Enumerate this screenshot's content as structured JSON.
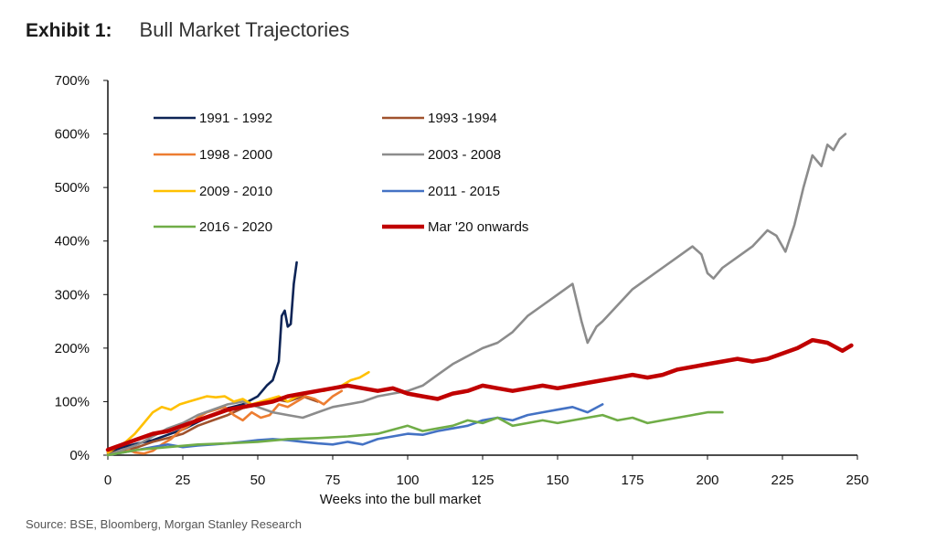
{
  "header": {
    "exhibit": "Exhibit 1:",
    "title": "Bull Market Trajectories"
  },
  "source": "Source: BSE, Bloomberg, Morgan Stanley Research",
  "chart_data": {
    "type": "line",
    "title": "Bull Market Trajectories",
    "xlabel": "Weeks into the bull market",
    "ylabel": "",
    "xlim": [
      0,
      250
    ],
    "ylim": [
      0,
      700
    ],
    "xticks": [
      0,
      25,
      50,
      75,
      100,
      125,
      150,
      175,
      200,
      225,
      250
    ],
    "yticks": [
      0,
      100,
      200,
      300,
      400,
      500,
      600,
      700
    ],
    "ytick_labels": [
      "0%",
      "100%",
      "200%",
      "300%",
      "400%",
      "500%",
      "600%",
      "700%"
    ],
    "grid": false,
    "legend_position": "top-left",
    "series": [
      {
        "name": "1991 - 1992",
        "color": "#0d2456",
        "x": [
          0,
          5,
          10,
          15,
          20,
          25,
          30,
          35,
          40,
          45,
          50,
          53,
          55,
          57,
          58,
          59,
          60,
          61,
          62,
          63
        ],
        "y": [
          5,
          15,
          22,
          28,
          38,
          48,
          62,
          75,
          88,
          95,
          110,
          130,
          140,
          175,
          260,
          270,
          240,
          245,
          320,
          360
        ]
      },
      {
        "name": "1993 -1994",
        "color": "#a0522d",
        "x": [
          0,
          5,
          10,
          15,
          20,
          25,
          30,
          35,
          40,
          45,
          50,
          55,
          60,
          65,
          70
        ],
        "y": [
          3,
          8,
          15,
          25,
          32,
          40,
          55,
          65,
          75,
          88,
          95,
          105,
          100,
          110,
          100
        ]
      },
      {
        "name": "1998 - 2000",
        "color": "#ed7d31",
        "x": [
          0,
          3,
          6,
          9,
          12,
          15,
          18,
          21,
          24,
          27,
          30,
          33,
          36,
          39,
          42,
          45,
          48,
          51,
          54,
          57,
          60,
          63,
          66,
          69,
          72,
          75,
          78
        ],
        "y": [
          0,
          5,
          12,
          5,
          3,
          8,
          20,
          30,
          45,
          55,
          70,
          80,
          85,
          90,
          75,
          65,
          80,
          70,
          75,
          95,
          90,
          100,
          110,
          105,
          95,
          110,
          120
        ]
      },
      {
        "name": "2003 - 2008",
        "color": "#8c8c8c",
        "x": [
          0,
          5,
          10,
          15,
          20,
          25,
          30,
          35,
          40,
          45,
          50,
          55,
          60,
          65,
          70,
          75,
          80,
          85,
          90,
          95,
          100,
          105,
          110,
          115,
          120,
          125,
          130,
          135,
          140,
          145,
          150,
          155,
          158,
          160,
          163,
          165,
          170,
          175,
          180,
          185,
          190,
          195,
          198,
          200,
          202,
          205,
          210,
          215,
          220,
          223,
          226,
          229,
          232,
          235,
          238,
          240,
          242,
          244,
          246
        ],
        "y": [
          0,
          10,
          20,
          35,
          50,
          60,
          75,
          85,
          95,
          100,
          90,
          80,
          75,
          70,
          80,
          90,
          95,
          100,
          110,
          115,
          120,
          130,
          150,
          170,
          185,
          200,
          210,
          230,
          260,
          280,
          300,
          320,
          250,
          210,
          240,
          250,
          280,
          310,
          330,
          350,
          370,
          390,
          375,
          340,
          330,
          350,
          370,
          390,
          420,
          410,
          380,
          430,
          500,
          560,
          540,
          580,
          570,
          590,
          600
        ]
      },
      {
        "name": "2009 - 2010",
        "color": "#ffc000",
        "x": [
          0,
          3,
          6,
          9,
          12,
          15,
          18,
          21,
          24,
          27,
          30,
          33,
          36,
          39,
          42,
          45,
          48,
          51,
          54,
          57,
          60,
          63,
          66,
          69,
          72,
          75,
          78,
          81,
          84,
          87
        ],
        "y": [
          5,
          15,
          25,
          40,
          60,
          80,
          90,
          85,
          95,
          100,
          105,
          110,
          108,
          110,
          100,
          105,
          95,
          100,
          105,
          110,
          100,
          110,
          115,
          120,
          120,
          125,
          130,
          140,
          145,
          155
        ]
      },
      {
        "name": "2011 - 2015",
        "color": "#4472c4",
        "x": [
          0,
          5,
          10,
          15,
          20,
          25,
          30,
          35,
          40,
          45,
          50,
          55,
          60,
          65,
          70,
          75,
          80,
          85,
          90,
          95,
          100,
          105,
          110,
          115,
          120,
          125,
          130,
          135,
          140,
          145,
          150,
          155,
          160,
          165
        ],
        "y": [
          0,
          5,
          10,
          15,
          20,
          15,
          18,
          20,
          22,
          25,
          28,
          30,
          28,
          25,
          22,
          20,
          25,
          20,
          30,
          35,
          40,
          38,
          45,
          50,
          55,
          65,
          70,
          65,
          75,
          80,
          85,
          90,
          80,
          95
        ]
      },
      {
        "name": "2016 - 2020",
        "color": "#70ad47",
        "x": [
          0,
          10,
          20,
          30,
          40,
          50,
          60,
          70,
          80,
          90,
          100,
          105,
          110,
          115,
          120,
          125,
          130,
          135,
          140,
          145,
          150,
          155,
          160,
          165,
          170,
          175,
          180,
          185,
          190,
          195,
          200,
          205
        ],
        "y": [
          0,
          10,
          15,
          20,
          22,
          25,
          30,
          32,
          35,
          40,
          55,
          45,
          50,
          55,
          65,
          60,
          70,
          55,
          60,
          65,
          60,
          65,
          70,
          75,
          65,
          70,
          60,
          65,
          70,
          75,
          80,
          80
        ]
      },
      {
        "name": "Mar '20 onwards",
        "color": "#c00000",
        "x": [
          0,
          5,
          10,
          15,
          20,
          25,
          30,
          35,
          40,
          45,
          50,
          55,
          60,
          65,
          70,
          75,
          80,
          85,
          90,
          95,
          100,
          105,
          110,
          115,
          120,
          125,
          130,
          135,
          140,
          145,
          150,
          155,
          160,
          165,
          170,
          175,
          180,
          185,
          190,
          195,
          200,
          205,
          210,
          215,
          220,
          225,
          230,
          235,
          240,
          245,
          248
        ],
        "y": [
          10,
          20,
          30,
          40,
          45,
          55,
          65,
          75,
          85,
          90,
          95,
          100,
          110,
          115,
          120,
          125,
          130,
          125,
          120,
          125,
          115,
          110,
          105,
          115,
          120,
          130,
          125,
          120,
          125,
          130,
          125,
          130,
          135,
          140,
          145,
          150,
          145,
          150,
          160,
          165,
          170,
          175,
          180,
          175,
          180,
          190,
          200,
          215,
          210,
          195,
          205
        ]
      }
    ]
  }
}
